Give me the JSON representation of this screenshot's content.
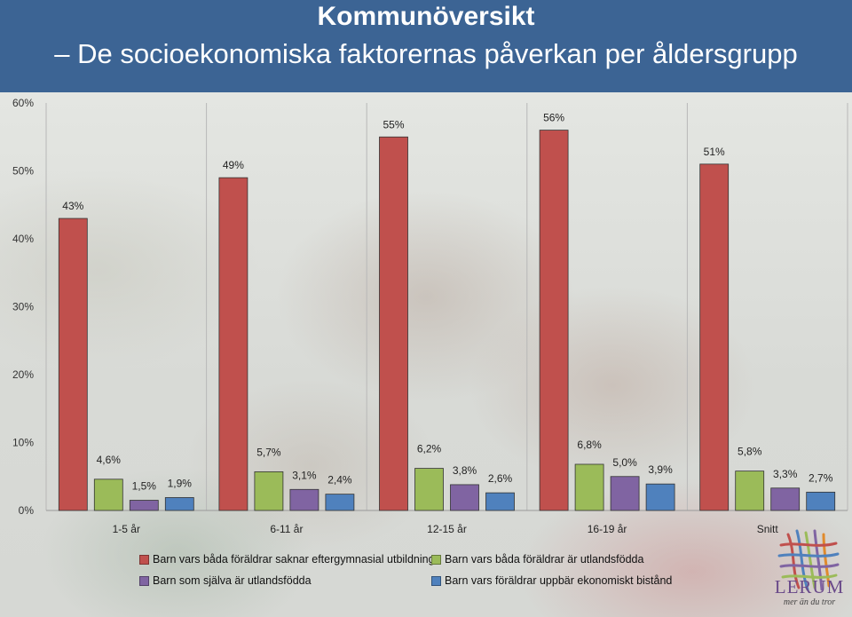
{
  "header": {
    "title": "Kommunöversikt",
    "subtitle": "– De socioekonomiska faktorernas påverkan per åldersgrupp"
  },
  "chart_data": {
    "type": "bar",
    "title": "",
    "xlabel": "",
    "ylabel": "",
    "ylim": [
      0,
      60
    ],
    "yticks": [
      "0%",
      "10%",
      "20%",
      "30%",
      "40%",
      "50%",
      "60%"
    ],
    "grid": false,
    "legend_position": "bottom",
    "categories": [
      "1-5 år",
      "6-11 år",
      "12-15 år",
      "16-19 år",
      "Snitt"
    ],
    "series": [
      {
        "name": "Barn vars båda föräldrar saknar eftergymnasial utbildning",
        "color": "#c0504d",
        "values": [
          43,
          49,
          55,
          56,
          51
        ],
        "labels": [
          "43%",
          "49%",
          "55%",
          "56%",
          "51%"
        ]
      },
      {
        "name": "Barn vars båda föräldrar är utlandsfödda",
        "color": "#9bbb59",
        "values": [
          4.6,
          5.7,
          6.2,
          6.8,
          5.8
        ],
        "labels": [
          "4,6%",
          "5,7%",
          "6,2%",
          "6,8%",
          "5,8%"
        ]
      },
      {
        "name": "Barn som själva är utlandsfödda",
        "color": "#8064a2",
        "values": [
          1.5,
          3.1,
          3.8,
          5.0,
          3.3
        ],
        "labels": [
          "1,5%",
          "3,1%",
          "3,8%",
          "5,0%",
          "3,3%"
        ]
      },
      {
        "name": "Barn vars föräldrar uppbär ekonomiskt bistånd",
        "color": "#4f81bd",
        "values": [
          1.9,
          2.4,
          2.6,
          3.9,
          2.7
        ],
        "labels": [
          "1,9%",
          "2,4%",
          "2,6%",
          "3,9%",
          "2,7%"
        ]
      }
    ]
  },
  "logo": {
    "name": "LERUM",
    "tagline": "mer än du tror"
  }
}
